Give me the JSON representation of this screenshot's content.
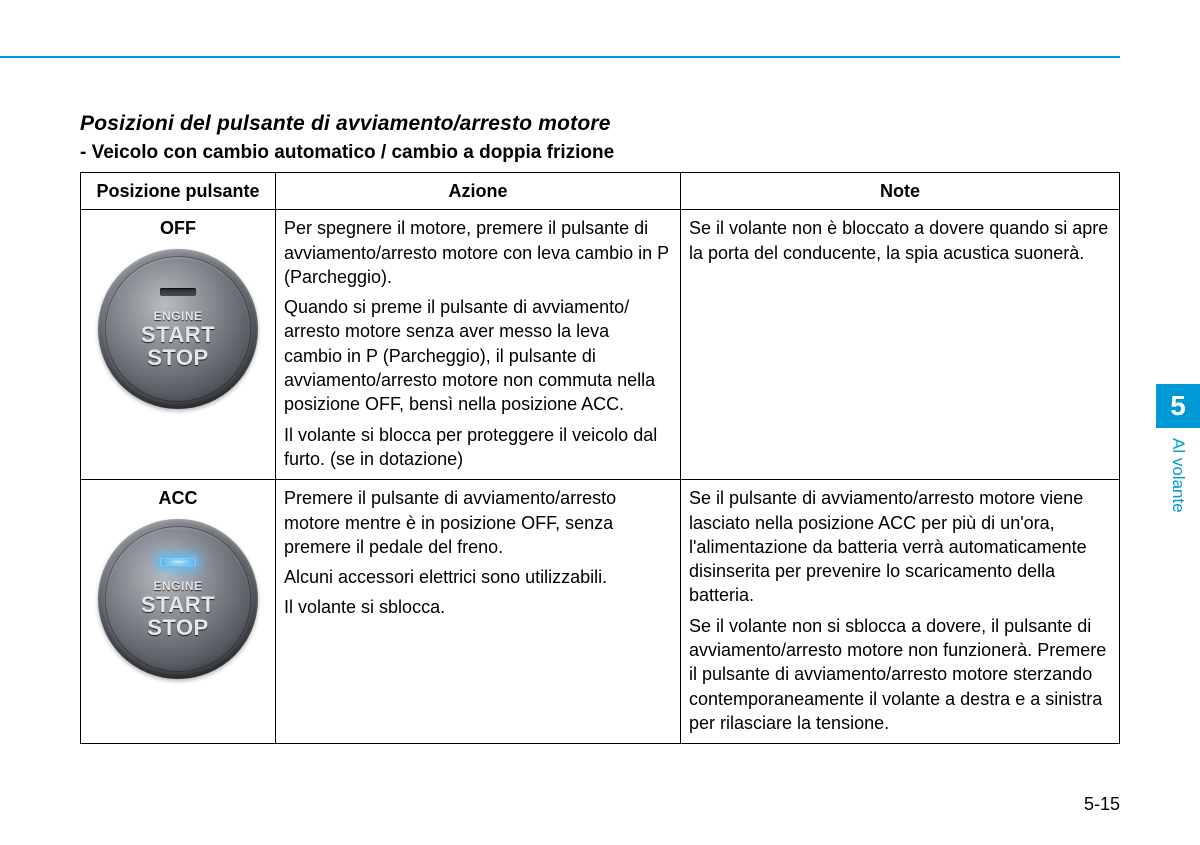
{
  "accent_color": "#0099d8",
  "title": "Posizioni del pulsante di avviamento/arresto motore",
  "subtitle": "- Veicolo con cambio automatico / cambio a doppia frizione",
  "headers": {
    "col1": "Posizione pulsante",
    "col2": "Azione",
    "col3": "Note"
  },
  "button_text": {
    "engine": "ENGINE",
    "start": "START",
    "stop": "STOP"
  },
  "rows": [
    {
      "position": "OFF",
      "led_on": false,
      "action": [
        "Per spegnere il motore, premere il pulsante di avviamento/arresto motore con leva cambio in P (Parcheggio).",
        "Quando si preme il pulsante di avviamento/ arresto motore senza aver messo la leva cambio in P (Parcheggio), il pulsante di avviamento/arresto motore non commuta nella posizione OFF, bensì nella posizione ACC.",
        "Il volante si blocca per proteggere il veicolo dal furto. (se in dotazione)"
      ],
      "note": [
        "Se il volante non è bloccato a dovere quando si apre la porta del conducente, la spia acustica suonerà."
      ]
    },
    {
      "position": "ACC",
      "led_on": true,
      "action": [
        "Premere il pulsante di avviamento/arresto motore mentre è in posizione OFF, senza premere il pedale del freno.",
        "Alcuni accessori elettrici sono utilizzabili.",
        "Il volante si sblocca."
      ],
      "note": [
        "Se il pulsante di avviamento/arresto motore viene lasciato nella posizione ACC per più di un'ora, l'alimentazione da batteria verrà automaticamente disinserita per prevenire lo scaricamento della batteria.",
        "Se il volante non si sblocca a dovere, il pulsante di avviamento/arresto motore non funzionerà. Premere il pulsante di avviamento/arresto motore sterzando contemporaneamente il volante a destra e a sinistra per rilasciare la tensione."
      ]
    }
  ],
  "side_tab": {
    "number": "5",
    "label": "Al volante"
  },
  "page_number": "5-15"
}
